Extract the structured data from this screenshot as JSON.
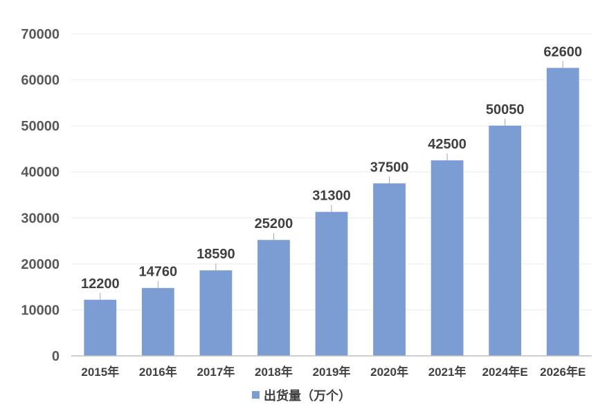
{
  "chart_data": {
    "type": "bar",
    "title": "",
    "xlabel": "",
    "ylabel": "",
    "categories": [
      "2015年",
      "2016年",
      "2017年",
      "2018年",
      "2019年",
      "2020年",
      "2021年",
      "2024年E",
      "2026年E"
    ],
    "series": [
      {
        "name": "出货量（万个）",
        "values": [
          12200,
          14760,
          18590,
          25200,
          31300,
          37500,
          42500,
          50050,
          62600
        ],
        "color": "#7b9dd4"
      }
    ],
    "ylim": [
      0,
      70000
    ],
    "yticks": [
      0,
      10000,
      20000,
      30000,
      40000,
      50000,
      60000,
      70000
    ],
    "grid": true,
    "legend": "bottom",
    "data_labels": true
  }
}
